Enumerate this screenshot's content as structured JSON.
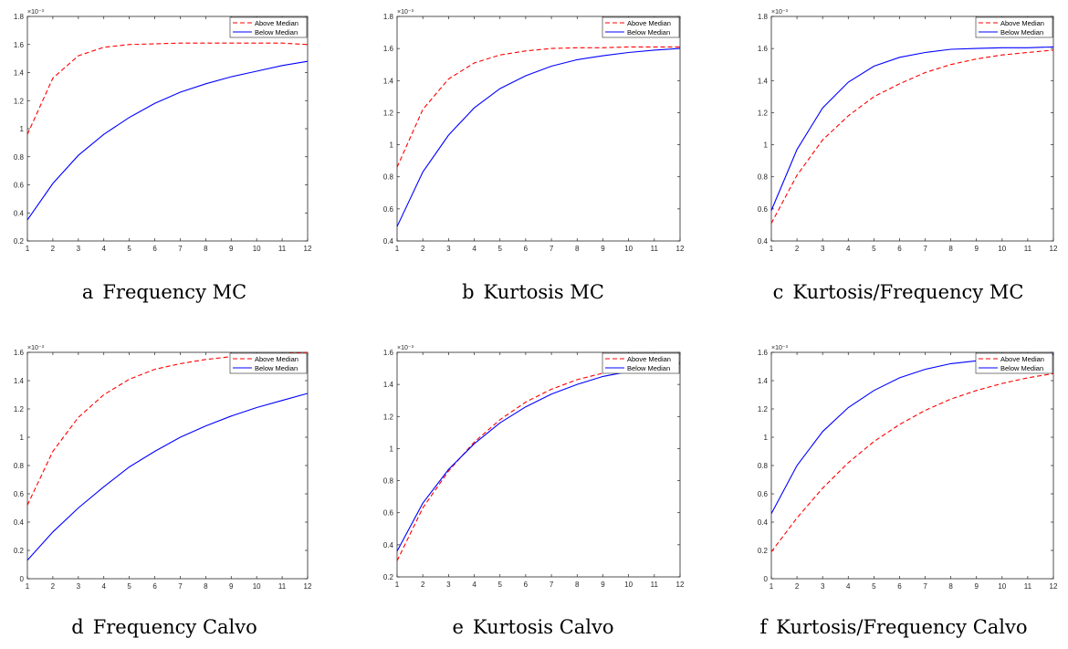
{
  "figure": {
    "panels": [
      {
        "letter": "a",
        "title": "Frequency MC"
      },
      {
        "letter": "b",
        "title": "Kurtosis MC"
      },
      {
        "letter": "c",
        "title": "Kurtosis/Frequency MC"
      },
      {
        "letter": "d",
        "title": "Frequency Calvo"
      },
      {
        "letter": "e",
        "title": "Kurtosis Calvo"
      },
      {
        "letter": "f",
        "title": "Kurtosis/Frequency Calvo"
      }
    ]
  },
  "chart_data": [
    {
      "type": "line",
      "title": "Frequency MC",
      "xlabel": "",
      "ylabel": "",
      "y_exponent_label": "×10⁻³",
      "x": [
        1,
        2,
        3,
        4,
        5,
        6,
        7,
        8,
        9,
        10,
        11,
        12
      ],
      "xlim": [
        1,
        12
      ],
      "ylim": [
        0.2,
        1.8
      ],
      "yticks": [
        0.2,
        0.4,
        0.6,
        0.8,
        1,
        1.2,
        1.4,
        1.6,
        1.8
      ],
      "legend_position": "top-right",
      "series": [
        {
          "name": "Above Median",
          "color": "#ff0000",
          "style": "dashed",
          "values": [
            0.96,
            1.36,
            1.52,
            1.58,
            1.6,
            1.605,
            1.61,
            1.61,
            1.61,
            1.61,
            1.61,
            1.6
          ]
        },
        {
          "name": "Below Median",
          "color": "#0000ff",
          "style": "solid",
          "values": [
            0.35,
            0.61,
            0.81,
            0.96,
            1.08,
            1.18,
            1.26,
            1.32,
            1.37,
            1.41,
            1.45,
            1.48
          ]
        }
      ]
    },
    {
      "type": "line",
      "title": "Kurtosis MC",
      "xlabel": "",
      "ylabel": "",
      "y_exponent_label": "×10⁻³",
      "x": [
        1,
        2,
        3,
        4,
        5,
        6,
        7,
        8,
        9,
        10,
        11,
        12
      ],
      "xlim": [
        1,
        12
      ],
      "ylim": [
        0.4,
        1.8
      ],
      "yticks": [
        0.4,
        0.6,
        0.8,
        1,
        1.2,
        1.4,
        1.6,
        1.8
      ],
      "legend_position": "top-right",
      "series": [
        {
          "name": "Above Median",
          "color": "#ff0000",
          "style": "dashed",
          "values": [
            0.86,
            1.22,
            1.41,
            1.51,
            1.56,
            1.585,
            1.6,
            1.605,
            1.605,
            1.61,
            1.61,
            1.61
          ]
        },
        {
          "name": "Below Median",
          "color": "#0000ff",
          "style": "solid",
          "values": [
            0.49,
            0.83,
            1.06,
            1.23,
            1.35,
            1.43,
            1.49,
            1.53,
            1.555,
            1.575,
            1.59,
            1.6
          ]
        }
      ]
    },
    {
      "type": "line",
      "title": "Kurtosis/Frequency MC",
      "xlabel": "",
      "ylabel": "",
      "y_exponent_label": "×10⁻³",
      "x": [
        1,
        2,
        3,
        4,
        5,
        6,
        7,
        8,
        9,
        10,
        11,
        12
      ],
      "xlim": [
        1,
        12
      ],
      "ylim": [
        0.4,
        1.8
      ],
      "yticks": [
        0.4,
        0.6,
        0.8,
        1,
        1.2,
        1.4,
        1.6,
        1.8
      ],
      "legend_position": "top-right",
      "series": [
        {
          "name": "Above Median",
          "color": "#ff0000",
          "style": "dashed",
          "values": [
            0.51,
            0.81,
            1.03,
            1.18,
            1.3,
            1.38,
            1.45,
            1.5,
            1.535,
            1.56,
            1.575,
            1.59
          ]
        },
        {
          "name": "Below Median",
          "color": "#0000ff",
          "style": "solid",
          "values": [
            0.59,
            0.97,
            1.23,
            1.39,
            1.49,
            1.545,
            1.575,
            1.595,
            1.6,
            1.605,
            1.605,
            1.61
          ]
        }
      ]
    },
    {
      "type": "line",
      "title": "Frequency Calvo",
      "xlabel": "",
      "ylabel": "",
      "y_exponent_label": "×10⁻³",
      "x": [
        1,
        2,
        3,
        4,
        5,
        6,
        7,
        8,
        9,
        10,
        11,
        12
      ],
      "xlim": [
        1,
        12
      ],
      "ylim": [
        0,
        1.6
      ],
      "yticks": [
        0,
        0.2,
        0.4,
        0.6,
        0.8,
        1,
        1.2,
        1.4,
        1.6
      ],
      "legend_position": "top-right",
      "series": [
        {
          "name": "Above Median",
          "color": "#ff0000",
          "style": "dashed",
          "values": [
            0.52,
            0.9,
            1.14,
            1.3,
            1.41,
            1.48,
            1.52,
            1.55,
            1.57,
            1.58,
            1.59,
            1.6
          ]
        },
        {
          "name": "Below Median",
          "color": "#0000ff",
          "style": "solid",
          "values": [
            0.13,
            0.33,
            0.5,
            0.65,
            0.79,
            0.9,
            1.0,
            1.08,
            1.15,
            1.21,
            1.26,
            1.31
          ]
        }
      ]
    },
    {
      "type": "line",
      "title": "Kurtosis Calvo",
      "xlabel": "",
      "ylabel": "",
      "y_exponent_label": "×10⁻³",
      "x": [
        1,
        2,
        3,
        4,
        5,
        6,
        7,
        8,
        9,
        10,
        11,
        12
      ],
      "xlim": [
        1,
        12
      ],
      "ylim": [
        0.2,
        1.6
      ],
      "yticks": [
        0.2,
        0.4,
        0.6,
        0.8,
        1,
        1.2,
        1.4,
        1.6
      ],
      "legend_position": "top-right",
      "series": [
        {
          "name": "Above Median",
          "color": "#ff0000",
          "style": "dashed",
          "values": [
            0.3,
            0.63,
            0.86,
            1.04,
            1.18,
            1.29,
            1.37,
            1.43,
            1.47,
            1.5,
            1.52,
            1.54
          ]
        },
        {
          "name": "Below Median",
          "color": "#0000ff",
          "style": "solid",
          "values": [
            0.36,
            0.66,
            0.87,
            1.03,
            1.16,
            1.26,
            1.34,
            1.4,
            1.45,
            1.48,
            1.51,
            1.53
          ]
        }
      ]
    },
    {
      "type": "line",
      "title": "Kurtosis/Frequency Calvo",
      "xlabel": "",
      "ylabel": "",
      "y_exponent_label": "×10⁻³",
      "x": [
        1,
        2,
        3,
        4,
        5,
        6,
        7,
        8,
        9,
        10,
        11,
        12
      ],
      "xlim": [
        1,
        12
      ],
      "ylim": [
        0,
        1.6
      ],
      "yticks": [
        0,
        0.2,
        0.4,
        0.6,
        0.8,
        1,
        1.2,
        1.4,
        1.6
      ],
      "legend_position": "top-right",
      "series": [
        {
          "name": "Above Median",
          "color": "#ff0000",
          "style": "dashed",
          "values": [
            0.19,
            0.43,
            0.64,
            0.82,
            0.97,
            1.09,
            1.19,
            1.27,
            1.33,
            1.38,
            1.42,
            1.45
          ]
        },
        {
          "name": "Below Median",
          "color": "#0000ff",
          "style": "solid",
          "values": [
            0.46,
            0.8,
            1.04,
            1.21,
            1.33,
            1.42,
            1.48,
            1.52,
            1.54,
            1.56,
            1.575,
            1.585
          ]
        }
      ]
    }
  ]
}
